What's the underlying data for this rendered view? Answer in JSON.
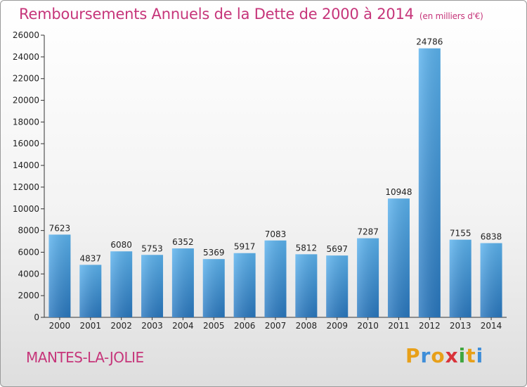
{
  "chart_data": {
    "type": "bar",
    "title": "Remboursements Annuels de la Dette de 2000 à 2014",
    "subtitle": "(en milliers d'€)",
    "categories": [
      "2000",
      "2001",
      "2002",
      "2003",
      "2004",
      "2005",
      "2006",
      "2007",
      "2008",
      "2009",
      "2010",
      "2011",
      "2012",
      "2013",
      "2014"
    ],
    "values": [
      7623,
      4837,
      6080,
      5753,
      6352,
      5369,
      5917,
      7083,
      5812,
      5697,
      7287,
      10948,
      24786,
      7155,
      6838
    ],
    "ylim": [
      0,
      26000
    ],
    "yticks": [
      0,
      2000,
      4000,
      6000,
      8000,
      10000,
      12000,
      14000,
      16000,
      18000,
      20000,
      22000,
      24000,
      26000
    ],
    "grid": false,
    "bar_color": "#3d8fd6"
  },
  "footer": {
    "city": "MANTES-LA-JOLIE",
    "logo_text": "Proxiti"
  }
}
